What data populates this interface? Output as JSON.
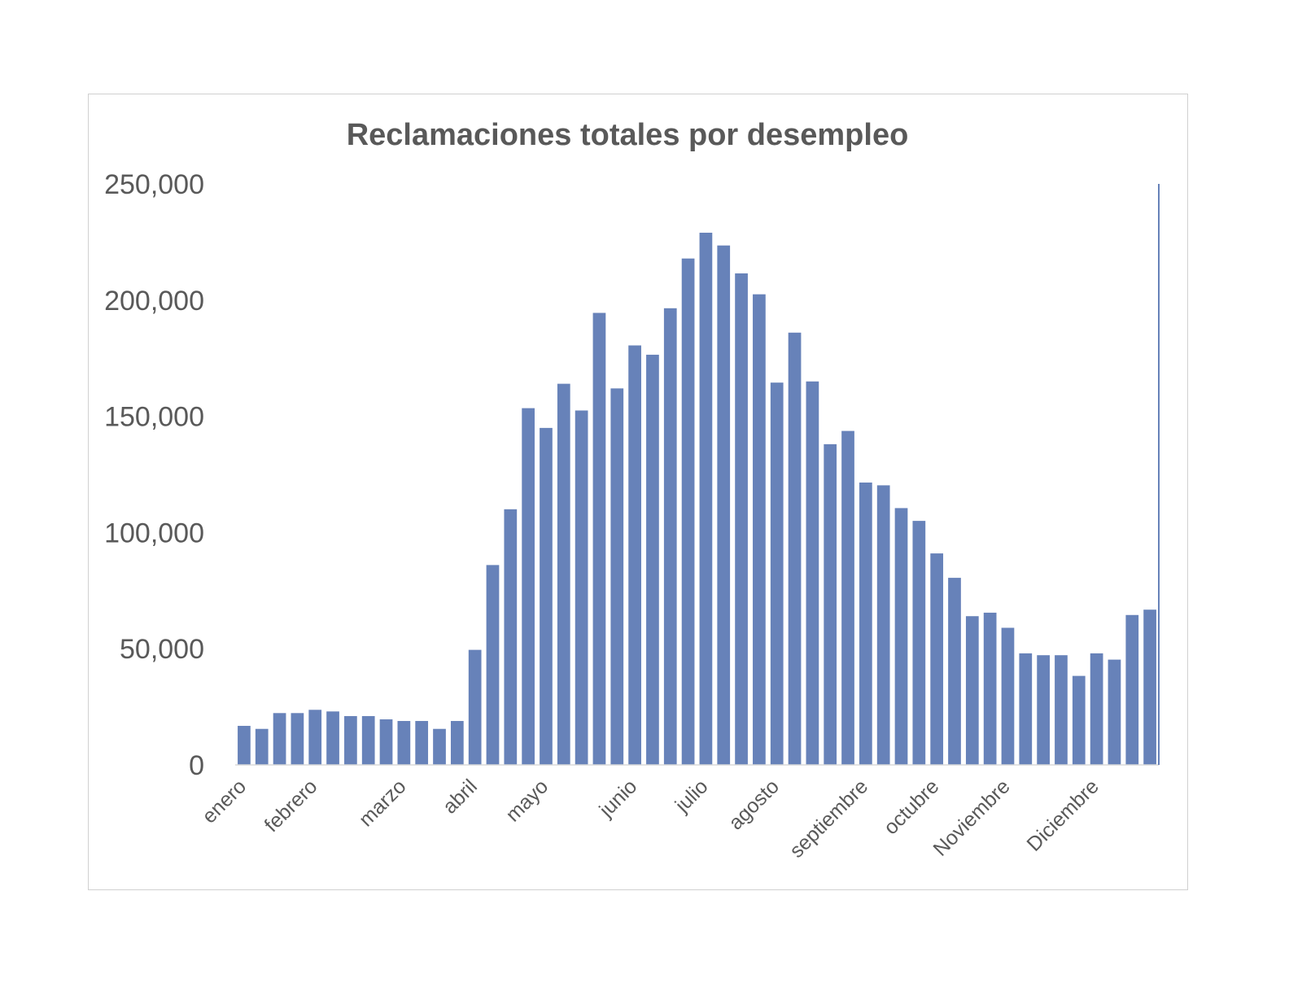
{
  "chart_data": {
    "type": "bar",
    "title": "Reclamaciones totales por desempleo",
    "xlabel": "",
    "ylabel": "",
    "ylim": [
      0,
      250000
    ],
    "yticks": [
      0,
      50000,
      100000,
      150000,
      200000,
      250000
    ],
    "ytick_labels": [
      "0",
      "50,000",
      "100,000",
      "150,000",
      "200,000",
      "250,000"
    ],
    "month_labels": [
      "enero",
      "febrero",
      "marzo",
      "abril",
      "mayo",
      "junio",
      "julio",
      "agosto",
      "septiembre",
      "octubre",
      "Noviembre",
      "Diciembre"
    ],
    "values": [
      16800,
      15500,
      22300,
      22300,
      23700,
      23000,
      21000,
      21000,
      19600,
      18900,
      18900,
      15500,
      18900,
      49500,
      86000,
      110000,
      153500,
      145000,
      164000,
      152500,
      194500,
      162000,
      180500,
      176500,
      196500,
      217900,
      229000,
      223500,
      211500,
      202500,
      164500,
      186000,
      165000,
      138000,
      143700,
      121500,
      120300,
      110500,
      105000,
      91000,
      80500,
      64000,
      65500,
      59000,
      48000,
      47200,
      47200,
      38300,
      48000,
      45300,
      64500,
      66800
    ],
    "legend": "none",
    "grid": false,
    "colors": {
      "bar": "#6782B9",
      "text": "#595959",
      "axis": "#d9d9d9",
      "frame": "#d0d0d0",
      "end_line": "#6782B9"
    }
  }
}
